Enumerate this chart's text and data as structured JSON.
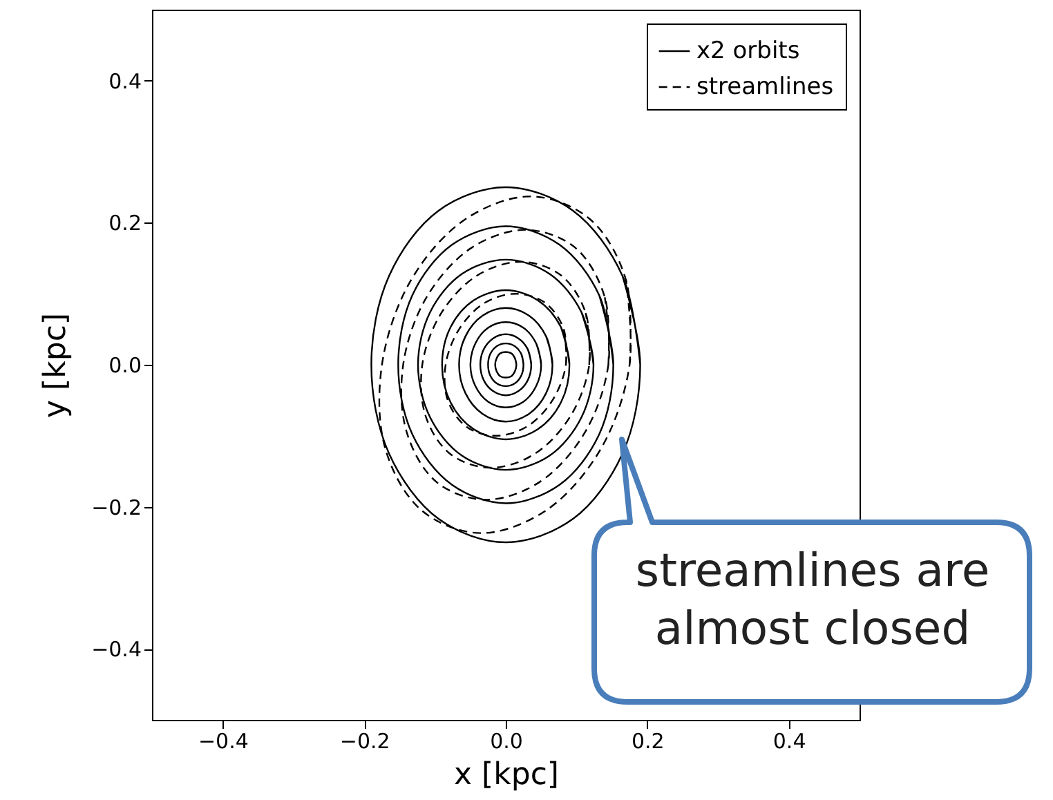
{
  "chart_data": {
    "type": "line",
    "xlabel": "x [kpc]",
    "ylabel": "y [kpc]",
    "xlim": [
      -0.5,
      0.5
    ],
    "ylim": [
      -0.5,
      0.5
    ],
    "xticks": [
      {
        "value": -0.4,
        "label": "−0.4"
      },
      {
        "value": -0.2,
        "label": "−0.2"
      },
      {
        "value": 0.0,
        "label": "0.0"
      },
      0.2,
      0.4
    ],
    "yticks": [
      {
        "value": -0.4,
        "label": "−0.4"
      },
      {
        "value": -0.2,
        "label": "−0.2"
      },
      {
        "value": 0.0,
        "label": "0.0"
      },
      0.2,
      0.4
    ],
    "legend": "top right",
    "annotations": [
      "streamlines are almost closed"
    ],
    "series": [
      {
        "name": "x2 orbits",
        "color": "#000000",
        "line_style": "solid",
        "x": [
          0.19,
          0.165,
          0.095,
          0,
          -0.095,
          -0.165,
          -0.19,
          -0.165,
          -0.095,
          0,
          0.095,
          0.165,
          0.19,
          0.165
        ],
        "values": [
          0,
          0.125,
          0.217,
          0.25,
          0.217,
          0.125,
          0,
          -0.125,
          -0.217,
          -0.25,
          -0.217,
          -0.125,
          0,
          0.125
        ]
      },
      {
        "name": "streamlines",
        "color": "#000000",
        "line_style": "dashed",
        "x": [
          0.175,
          0.17,
          0.119,
          0.036,
          -0.057,
          -0.134,
          -0.175,
          -0.17,
          -0.119,
          -0.036,
          0.057,
          0.134,
          0.175,
          0.17
        ],
        "values": [
          0,
          0.119,
          0.205,
          0.237,
          0.205,
          0.119,
          0,
          -0.119,
          -0.205,
          -0.237,
          -0.205,
          -0.119,
          0,
          0.119
        ]
      },
      {
        "color": "#000000",
        "line_style": "solid",
        "x": [
          0.152,
          0.132,
          0.076,
          0,
          -0.076,
          -0.132,
          -0.152,
          -0.132,
          -0.076,
          0,
          0.076,
          0.132,
          0.152,
          0.132
        ],
        "values": [
          0,
          0.098,
          0.169,
          0.195,
          0.169,
          0.098,
          0,
          -0.098,
          -0.169,
          -0.195,
          -0.169,
          -0.098,
          0,
          0.098
        ]
      },
      {
        "color": "#000000",
        "line_style": "solid",
        "x": [
          0.124,
          0.107,
          0.062,
          0,
          -0.062,
          -0.107,
          -0.124,
          -0.107,
          -0.062,
          0,
          0.062,
          0.107,
          0.124,
          0.107
        ],
        "values": [
          0,
          0.074,
          0.128,
          0.148,
          0.128,
          0.074,
          0,
          -0.074,
          -0.128,
          -0.148,
          -0.128,
          -0.074,
          0,
          0.074
        ]
      },
      {
        "color": "#000000",
        "line_style": "solid",
        "x": [
          0.09,
          0.078,
          0.045,
          0,
          -0.045,
          -0.078,
          -0.09,
          -0.078,
          -0.045,
          0,
          0.045,
          0.078,
          0.09,
          0.078
        ],
        "values": [
          0,
          0.053,
          0.091,
          0.105,
          0.091,
          0.053,
          0,
          -0.053,
          -0.091,
          -0.105,
          -0.091,
          -0.053,
          0,
          0.053
        ]
      },
      {
        "color": "#000000",
        "line_style": "solid",
        "x": [
          0.066,
          0.057,
          0.033,
          0,
          -0.033,
          -0.057,
          -0.066,
          -0.057,
          -0.033,
          0,
          0.033,
          0.057,
          0.066,
          0.057
        ],
        "values": [
          0,
          0.04,
          0.069,
          0.08,
          0.069,
          0.04,
          0,
          -0.04,
          -0.069,
          -0.08,
          -0.069,
          -0.04,
          0,
          0.04
        ]
      },
      {
        "color": "#000000",
        "line_style": "solid",
        "x": [
          0.05,
          0.043,
          0.025,
          0,
          -0.025,
          -0.043,
          -0.05,
          -0.043,
          -0.025,
          0,
          0.025,
          0.043,
          0.05,
          0.043
        ],
        "values": [
          0,
          0.03,
          0.052,
          0.06,
          0.052,
          0.03,
          0,
          -0.03,
          -0.052,
          -0.06,
          -0.052,
          -0.03,
          0,
          0.03
        ]
      },
      {
        "color": "#000000",
        "line_style": "solid",
        "x": [
          0.036,
          0.031,
          0.018,
          0,
          -0.018,
          -0.031,
          -0.036,
          -0.031,
          -0.018,
          0,
          0.018,
          0.031,
          0.036,
          0.031
        ],
        "values": [
          0,
          0.022,
          0.037,
          0.043,
          0.037,
          0.022,
          0,
          -0.022,
          -0.037,
          -0.043,
          -0.037,
          -0.022,
          0,
          0.022
        ]
      },
      {
        "color": "#000000",
        "line_style": "solid",
        "x": [
          0.025,
          0.022,
          0.013,
          0,
          -0.013,
          -0.022,
          -0.025,
          -0.022,
          -0.013,
          0,
          0.013,
          0.022,
          0.025,
          0.022
        ],
        "values": [
          0,
          0.015,
          0.026,
          0.03,
          0.026,
          0.015,
          0,
          -0.015,
          -0.026,
          -0.03,
          -0.026,
          -0.015,
          0,
          0.015
        ]
      },
      {
        "color": "#000000",
        "line_style": "solid",
        "x": [
          0.015,
          0.013,
          0.008,
          0,
          -0.008,
          -0.013,
          -0.015,
          -0.013,
          -0.008,
          0,
          0.008,
          0.013,
          0.015,
          0.013
        ],
        "values": [
          0,
          0.009,
          0.016,
          0.018,
          0.016,
          0.009,
          0,
          -0.009,
          -0.016,
          -0.018,
          -0.016,
          -0.009,
          0,
          0.009
        ]
      },
      {
        "color": "#000000",
        "line_style": "dashed",
        "x": [
          0.145,
          0.14,
          0.098,
          0.029,
          -0.048,
          -0.112,
          -0.145,
          -0.14,
          -0.098,
          -0.029,
          0.048,
          0.112,
          0.145,
          0.14
        ],
        "values": [
          0,
          0.095,
          0.165,
          0.19,
          0.165,
          0.095,
          0,
          -0.095,
          -0.165,
          -0.19,
          -0.165,
          -0.095,
          0,
          0.095
        ]
      },
      {
        "color": "#000000",
        "line_style": "dashed",
        "x": [
          0.118,
          0.113,
          0.078,
          0.022,
          -0.04,
          -0.091,
          -0.118,
          -0.113,
          -0.078,
          -0.022,
          0.04,
          0.091,
          0.118,
          0.113
        ],
        "values": [
          0,
          0.073,
          0.126,
          0.145,
          0.126,
          0.073,
          0,
          -0.073,
          -0.126,
          -0.145,
          -0.126,
          -0.073,
          0,
          0.073
        ]
      },
      {
        "color": "#000000",
        "line_style": "dashed",
        "x": [
          0.085,
          0.082,
          0.056,
          0.015,
          -0.03,
          -0.066,
          -0.085,
          -0.082,
          -0.056,
          -0.015,
          0.03,
          0.066,
          0.085,
          0.082
        ],
        "values": [
          0,
          0.05,
          0.087,
          0.1,
          0.087,
          0.05,
          0,
          -0.05,
          -0.087,
          -0.1,
          -0.087,
          -0.05,
          0,
          0.05
        ]
      }
    ]
  }
}
